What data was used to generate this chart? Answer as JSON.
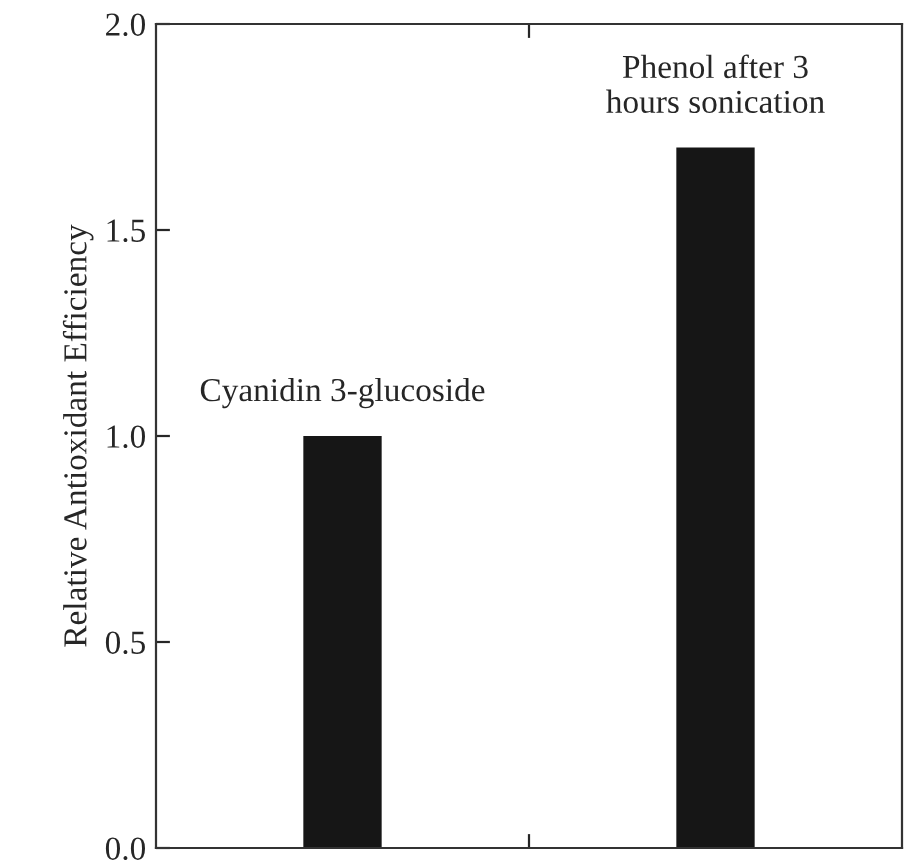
{
  "chart_data": {
    "type": "bar",
    "ylabel": "Relative Antioxidant Efficiency",
    "categories": [
      "Cyanidin 3-glucoside",
      "Phenol after 3\nhours sonication"
    ],
    "values": [
      1.0,
      1.7
    ],
    "color": "#161616",
    "ylim": [
      0,
      2.0
    ],
    "yticks": [
      {
        "value": 0,
        "label": "0.0"
      },
      {
        "value": 0.5,
        "label": "0.5"
      },
      {
        "value": 1.0,
        "label": "1.0"
      },
      {
        "value": 1.5,
        "label": "1.5"
      },
      {
        "value": 2.0,
        "label": "2.0"
      }
    ],
    "grid": false,
    "legend": false
  }
}
